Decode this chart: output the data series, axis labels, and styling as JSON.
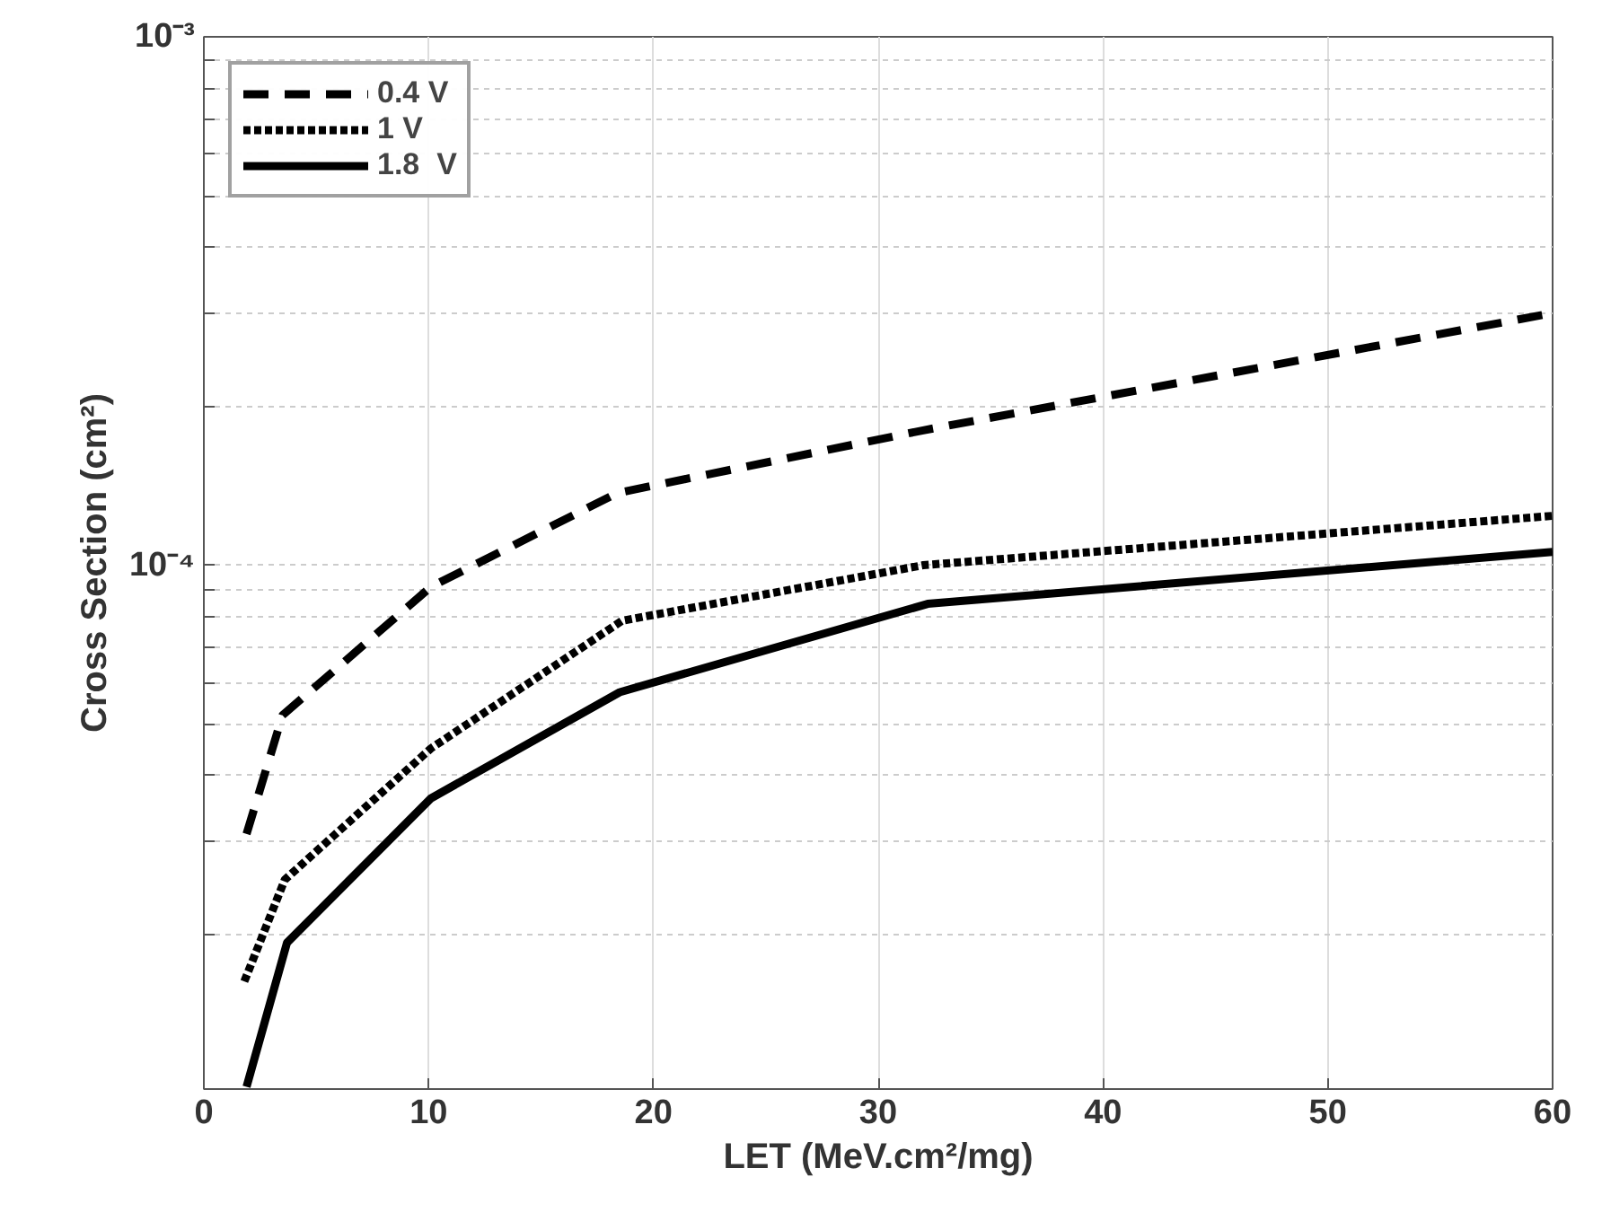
{
  "chart_data": {
    "type": "line",
    "xlabel": "LET (MeV.cm²/mg)",
    "ylabel": "Cross Section (cm²)",
    "log": "y",
    "grid": true,
    "legend": "top left",
    "xlim": [
      0,
      60
    ],
    "xticks": [
      0,
      10,
      20,
      30,
      40,
      50,
      60
    ],
    "ylim": [
      1.02e-05,
      0.001
    ],
    "yticks": [
      {
        "value": 2e-05,
        "label": null
      },
      {
        "value": 3e-05,
        "label": null
      },
      {
        "value": 4e-05,
        "label": null
      },
      {
        "value": 5e-05,
        "label": null
      },
      {
        "value": 6e-05,
        "label": null
      },
      {
        "value": 7e-05,
        "label": null
      },
      {
        "value": 8e-05,
        "label": null
      },
      {
        "value": 9e-05,
        "label": null
      },
      {
        "value": 0.0001,
        "label": "10⁻⁴"
      },
      {
        "value": 0.0002,
        "label": null
      },
      {
        "value": 0.0003,
        "label": null
      },
      {
        "value": 0.0004,
        "label": null
      },
      {
        "value": 0.0005,
        "label": null
      },
      {
        "value": 0.0006,
        "label": null
      },
      {
        "value": 0.0007,
        "label": null
      },
      {
        "value": 0.0008,
        "label": null
      },
      {
        "value": 0.0009,
        "label": null
      },
      {
        "value": 0.001,
        "label": "10⁻³"
      }
    ],
    "series": [
      {
        "name": "0.4 V",
        "color": "#000000",
        "line_style": "dashed",
        "x": [
          1.9,
          3.5,
          10.1,
          18.4,
          32,
          60
        ],
        "values": [
          3.1e-05,
          5.2e-05,
          9.1e-05,
          0.000137,
          0.00018,
          0.0003
        ]
      },
      {
        "name": "1 V",
        "color": "#000000",
        "line_style": "dotted",
        "x": [
          1.8,
          3.6,
          10.1,
          18.6,
          32,
          60
        ],
        "values": [
          1.63e-05,
          2.54e-05,
          4.5e-05,
          7.85e-05,
          0.0001,
          0.000124
        ]
      },
      {
        "name": "1.8  V",
        "color": "#000000",
        "line_style": "solid",
        "x": [
          1.9,
          3.7,
          10.1,
          18.5,
          32.2,
          60
        ],
        "values": [
          1.03e-05,
          1.93e-05,
          3.62e-05,
          5.75e-05,
          8.45e-05,
          0.000106
        ]
      }
    ]
  }
}
